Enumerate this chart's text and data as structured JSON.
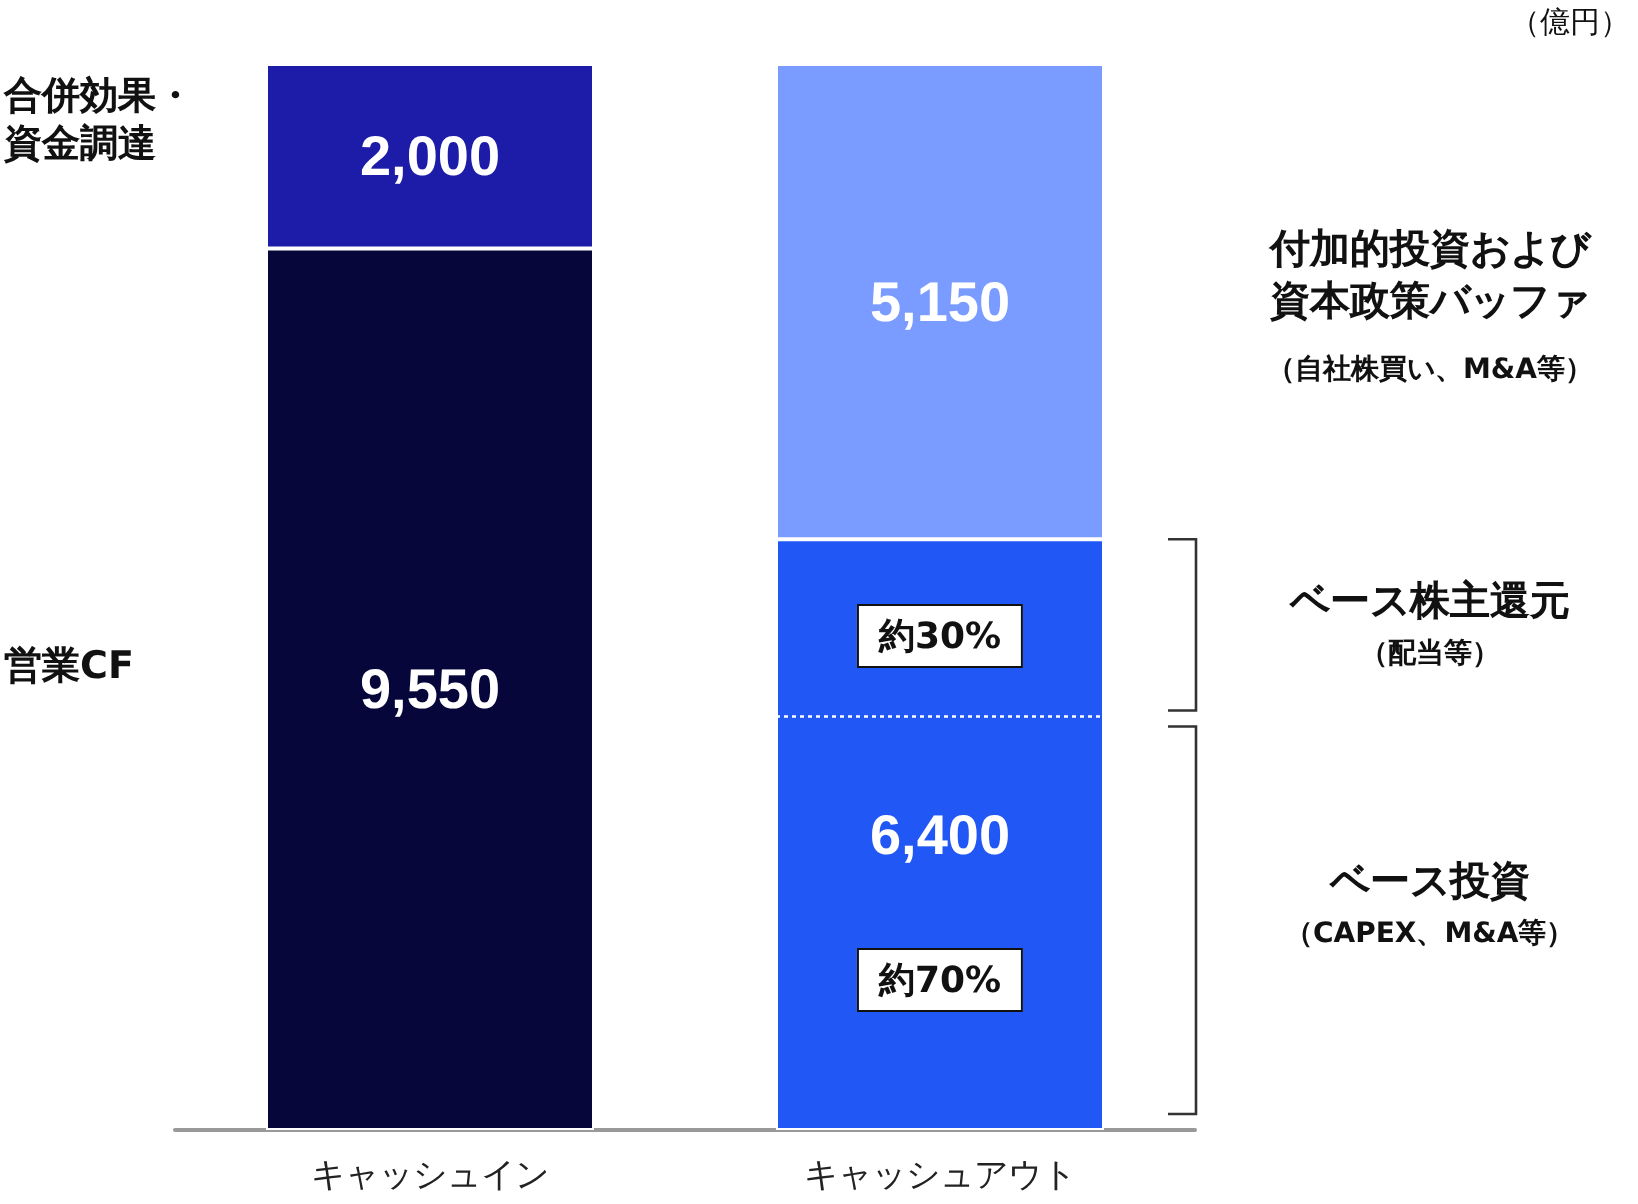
{
  "chart_data": {
    "type": "bar",
    "stacked": true,
    "tick_labels": "x",
    "categories": [
      "キャッシュイン",
      "キャッシュアウト"
    ],
    "series": [
      {
        "colors": [
          "#06063a",
          "#2158f5"
        ],
        "values": [
          9550,
          6400
        ],
        "value_labels": [
          "9,550",
          "6,400"
        ]
      },
      {
        "colors": [
          "#1c1ca8",
          "#7a9bff"
        ],
        "values": [
          2000,
          5150
        ],
        "value_labels": [
          "2,000",
          "5,150"
        ]
      }
    ],
    "ref_lines": [
      {
        "axis": "y",
        "value": 4480,
        "line_style": "dotted",
        "color": "#ffffff"
      }
    ],
    "annotations": [
      "合併効果・資金調達",
      "営業CF",
      "付加的投資および資本政策バッファ",
      "（自社株買い、M&A等）",
      "ベース株主還元",
      "（配当等）",
      "ベース投資",
      "（CAPEX、M&A等）",
      "約30%",
      "約70%",
      "（億円）"
    ]
  }
}
